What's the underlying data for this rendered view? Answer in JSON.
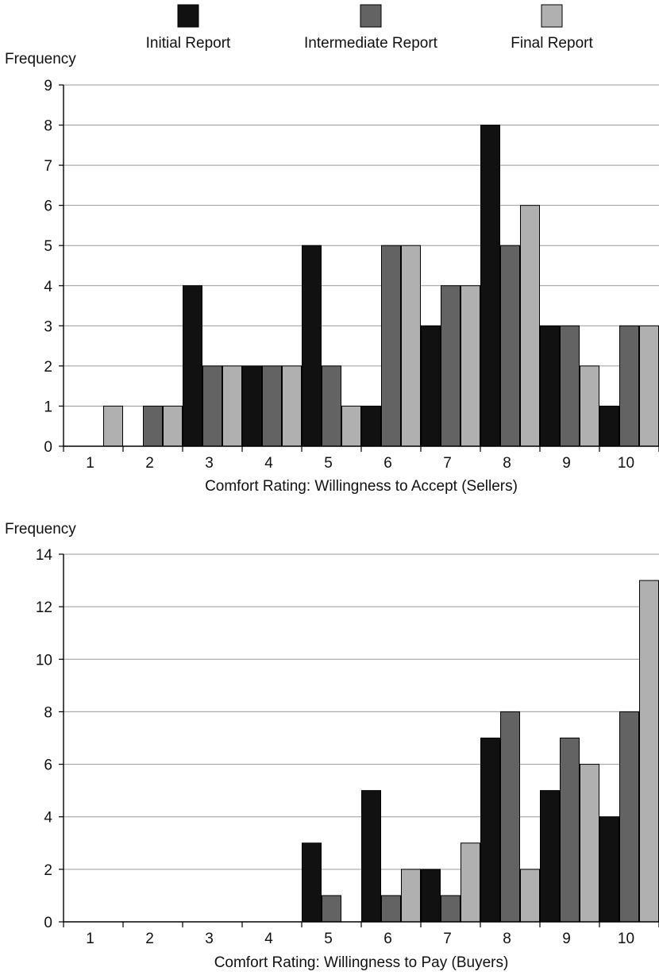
{
  "legend": {
    "items": [
      {
        "label": "Initial Report",
        "color": "#111111"
      },
      {
        "label": "Intermediate Report",
        "color": "#636363"
      },
      {
        "label": "Final Report",
        "color": "#b0b0b0"
      }
    ]
  },
  "chart_data": [
    {
      "type": "bar",
      "title": "",
      "ylabel": "Frequency",
      "xlabel": "Comfort Rating: Willingness to Accept (Sellers)",
      "ylim": [
        0,
        9
      ],
      "yticks": [
        0,
        1,
        2,
        3,
        4,
        5,
        6,
        7,
        8,
        9
      ],
      "grid": true,
      "legend_position": "top",
      "categories": [
        "1",
        "2",
        "3",
        "4",
        "5",
        "6",
        "7",
        "8",
        "9",
        "10"
      ],
      "series": [
        {
          "name": "Initial Report",
          "color": "#111111",
          "values": [
            0,
            0,
            4,
            2,
            5,
            1,
            3,
            8,
            3,
            1
          ]
        },
        {
          "name": "Intermediate Report",
          "color": "#636363",
          "values": [
            0,
            1,
            2,
            2,
            2,
            5,
            4,
            5,
            3,
            3
          ]
        },
        {
          "name": "Final Report",
          "color": "#b0b0b0",
          "values": [
            1,
            1,
            2,
            2,
            1,
            5,
            4,
            6,
            2,
            3
          ]
        }
      ]
    },
    {
      "type": "bar",
      "title": "",
      "ylabel": "Frequency",
      "xlabel": "Comfort Rating: Willingness to Pay (Buyers)",
      "ylim": [
        0,
        14
      ],
      "yticks": [
        0,
        2,
        4,
        6,
        8,
        10,
        12,
        14
      ],
      "grid": true,
      "legend_position": "top",
      "categories": [
        "1",
        "2",
        "3",
        "4",
        "5",
        "6",
        "7",
        "8",
        "9",
        "10"
      ],
      "series": [
        {
          "name": "Initial Report",
          "color": "#111111",
          "values": [
            0,
            0,
            0,
            0,
            3,
            5,
            2,
            7,
            5,
            4
          ]
        },
        {
          "name": "Intermediate Report",
          "color": "#636363",
          "values": [
            0,
            0,
            0,
            0,
            1,
            1,
            1,
            8,
            7,
            8
          ]
        },
        {
          "name": "Final Report",
          "color": "#b0b0b0",
          "values": [
            0,
            0,
            0,
            0,
            0,
            2,
            3,
            2,
            6,
            13
          ]
        }
      ]
    }
  ]
}
